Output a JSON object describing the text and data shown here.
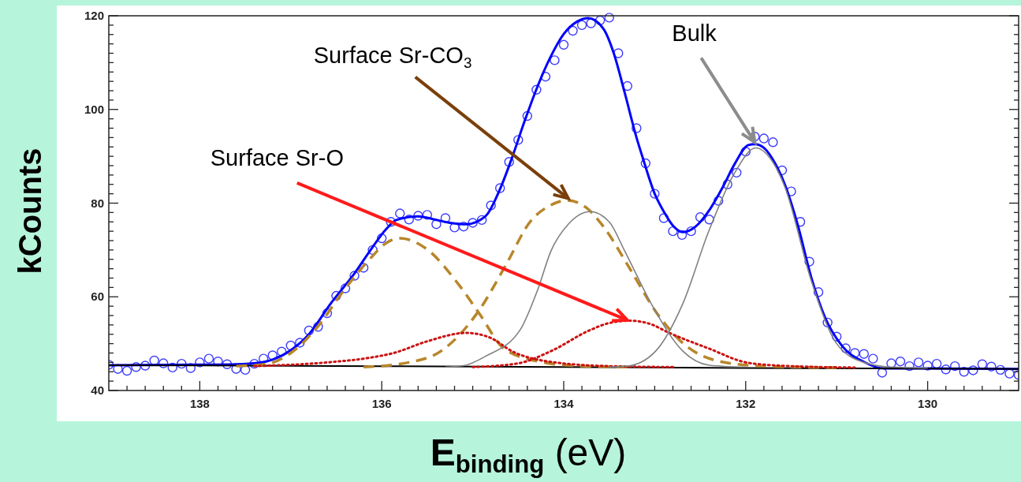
{
  "chart_data": {
    "type": "line",
    "xlabel": "E$_{binding}$ (eV)",
    "ylabel": "kCounts",
    "xlim": [
      139,
      129
    ],
    "ylim": [
      40,
      120
    ],
    "xticks": [
      {
        "value": 138.8,
        "label": null
      },
      {
        "value": 138.6,
        "label": null
      },
      {
        "value": 138.4,
        "label": null
      },
      {
        "value": 138.2,
        "label": null
      },
      138,
      {
        "value": 137.8,
        "label": null
      },
      {
        "value": 137.6,
        "label": null
      },
      {
        "value": 137.4,
        "label": null
      },
      {
        "value": 137.2,
        "label": null
      },
      {
        "value": 137,
        "label": null
      },
      {
        "value": 136.8,
        "label": null
      },
      {
        "value": 136.6,
        "label": null
      },
      {
        "value": 136.4,
        "label": null
      },
      {
        "value": 136.2,
        "label": null
      },
      136,
      {
        "value": 135.8,
        "label": null
      },
      {
        "value": 135.6,
        "label": null
      },
      {
        "value": 135.4,
        "label": null
      },
      {
        "value": 135.2,
        "label": null
      },
      {
        "value": 135,
        "label": null
      },
      {
        "value": 134.8,
        "label": null
      },
      {
        "value": 134.6,
        "label": null
      },
      {
        "value": 134.4,
        "label": null
      },
      {
        "value": 134.2,
        "label": null
      },
      134,
      {
        "value": 133.8,
        "label": null
      },
      {
        "value": 133.6,
        "label": null
      },
      {
        "value": 133.4,
        "label": null
      },
      {
        "value": 133.2,
        "label": null
      },
      {
        "value": 133,
        "label": null
      },
      {
        "value": 132.8,
        "label": null
      },
      {
        "value": 132.6,
        "label": null
      },
      {
        "value": 132.4,
        "label": null
      },
      {
        "value": 132.2,
        "label": null
      },
      132,
      {
        "value": 131.8,
        "label": null
      },
      {
        "value": 131.6,
        "label": null
      },
      {
        "value": 131.4,
        "label": null
      },
      {
        "value": 131.2,
        "label": null
      },
      {
        "value": 131,
        "label": null
      },
      {
        "value": 130.8,
        "label": null
      },
      {
        "value": 130.6,
        "label": null
      },
      {
        "value": 130.4,
        "label": null
      },
      {
        "value": 130.2,
        "label": null
      },
      130,
      {
        "value": 129.8,
        "label": null
      },
      {
        "value": 129.6,
        "label": null
      },
      {
        "value": 129.4,
        "label": null
      },
      {
        "value": 129.2,
        "label": null
      }
    ],
    "yticks": [
      40,
      {
        "value": 42,
        "label": null
      },
      {
        "value": 44,
        "label": null
      },
      {
        "value": 46,
        "label": null
      },
      {
        "value": 48,
        "label": null
      },
      {
        "value": 50,
        "label": null
      },
      {
        "value": 52,
        "label": null
      },
      {
        "value": 54,
        "label": null
      },
      {
        "value": 56,
        "label": null
      },
      {
        "value": 58,
        "label": null
      },
      60,
      {
        "value": 62,
        "label": null
      },
      {
        "value": 64,
        "label": null
      },
      {
        "value": 66,
        "label": null
      },
      {
        "value": 68,
        "label": null
      },
      {
        "value": 70,
        "label": null
      },
      {
        "value": 72,
        "label": null
      },
      {
        "value": 74,
        "label": null
      },
      {
        "value": 76,
        "label": null
      },
      {
        "value": 78,
        "label": null
      },
      80,
      {
        "value": 82,
        "label": null
      },
      {
        "value": 84,
        "label": null
      },
      {
        "value": 86,
        "label": null
      },
      {
        "value": 88,
        "label": null
      },
      {
        "value": 90,
        "label": null
      },
      {
        "value": 92,
        "label": null
      },
      {
        "value": 94,
        "label": null
      },
      {
        "value": 96,
        "label": null
      },
      {
        "value": 98,
        "label": null
      },
      100,
      {
        "value": 102,
        "label": null
      },
      {
        "value": 104,
        "label": null
      },
      {
        "value": 106,
        "label": null
      },
      {
        "value": 108,
        "label": null
      },
      {
        "value": 110,
        "label": null
      },
      {
        "value": 112,
        "label": null
      },
      {
        "value": 114,
        "label": null
      },
      {
        "value": 116,
        "label": null
      },
      {
        "value": 118,
        "label": null
      },
      120
    ],
    "series": [
      {
        "type": "scatter",
        "marker": "circle",
        "color": "#3c3cff",
        "x": [
          139.0,
          138.9,
          138.8,
          138.7,
          138.6,
          138.5,
          138.4,
          138.3,
          138.2,
          138.1,
          138.0,
          137.9,
          137.8,
          137.7,
          137.6,
          137.5,
          137.4,
          137.3,
          137.2,
          137.1,
          137.0,
          136.9,
          136.8,
          136.7,
          136.6,
          136.5,
          136.4,
          136.3,
          136.2,
          136.1,
          136.0,
          135.9,
          135.8,
          135.7,
          135.6,
          135.5,
          135.4,
          135.3,
          135.2,
          135.1,
          135.0,
          134.9,
          134.8,
          134.7,
          134.6,
          134.5,
          134.4,
          134.3,
          134.2,
          134.1,
          134.0,
          133.9,
          133.8,
          133.7,
          133.6,
          133.5,
          133.4,
          133.3,
          133.2,
          133.1,
          133.0,
          132.9,
          132.8,
          132.7,
          132.6,
          132.5,
          132.4,
          132.3,
          132.2,
          132.1,
          132.0,
          131.9,
          131.8,
          131.7,
          131.6,
          131.5,
          131.4,
          131.3,
          131.2,
          131.1,
          131.0,
          130.9,
          130.8,
          130.7,
          130.6,
          130.5,
          130.4,
          130.3,
          130.2,
          130.1,
          130.0,
          129.9,
          129.8,
          129.7,
          129.6,
          129.5,
          129.4,
          129.3,
          129.2,
          129.1,
          129.0
        ],
        "values": [
          45.5,
          44.6,
          44.2,
          45.0,
          45.3,
          46.4,
          45.8,
          44.9,
          45.7,
          44.8,
          46.0,
          46.8,
          46.2,
          45.6,
          44.6,
          44.4,
          45.7,
          46.8,
          47.5,
          48.3,
          49.6,
          50.2,
          52.8,
          53.6,
          56.5,
          60.2,
          61.8,
          64.5,
          66.2,
          70.0,
          72.5,
          76.0,
          77.8,
          76.5,
          77.3,
          77.5,
          75.5,
          76.8,
          74.8,
          75.0,
          75.8,
          76.4,
          79.5,
          83.2,
          88.8,
          93.5,
          98.6,
          104.2,
          107.0,
          110.5,
          113.8,
          116.8,
          118.0,
          118.4,
          119.0,
          119.6,
          112.0,
          105.0,
          96.0,
          88.5,
          82.0,
          76.8,
          74.0,
          73.2,
          74.0,
          77.0,
          76.5,
          80.5,
          84.0,
          86.5,
          91.0,
          94.2,
          93.8,
          93.0,
          87.0,
          82.5,
          76.0,
          67.5,
          61.0,
          54.5,
          51.5,
          49.0,
          48.0,
          47.8,
          46.8,
          43.8,
          45.8,
          46.2,
          45.2,
          46.0,
          45.3,
          45.7,
          44.5,
          45.2,
          44.0,
          44.3,
          45.6,
          45.1,
          44.4,
          43.6,
          43.3
        ]
      },
      {
        "line_style": "solid",
        "color": "#0000ff",
        "x": [
          139,
          138,
          137.6,
          137.4,
          137.2,
          137.0,
          136.8,
          136.56,
          136.3,
          136.13,
          135.95,
          135.84,
          135.6,
          135.44,
          135.25,
          135.07,
          134.86,
          134.7,
          134.57,
          134.43,
          134.29,
          134.15,
          134.0,
          133.85,
          133.73,
          133.56,
          133.45,
          133.33,
          133.2,
          133.13,
          133.0,
          132.9,
          132.8,
          132.69,
          132.55,
          132.41,
          132.25,
          132.12,
          131.97,
          131.9,
          131.8,
          131.71,
          131.57,
          131.43,
          131.28,
          131.13,
          130.94,
          130.7,
          130.48,
          130.0,
          129.0
        ],
        "values": [
          45.4,
          45.5,
          45.6,
          45.8,
          46.6,
          48.6,
          52.0,
          58.6,
          65.0,
          69.8,
          74.5,
          76.4,
          77.2,
          76.6,
          75.8,
          75.5,
          77.2,
          83.0,
          89.6,
          97.5,
          104.8,
          111.0,
          116.1,
          118.8,
          119.5,
          117.1,
          112.0,
          103.6,
          94.0,
          89.6,
          82.0,
          78.2,
          75.2,
          73.8,
          75.0,
          78.2,
          83.5,
          88.4,
          92.4,
          92.6,
          91.8,
          89.6,
          84.0,
          75.5,
          64.2,
          55.7,
          49.5,
          46.1,
          44.7,
          44.7,
          44.6
        ]
      },
      {
        "line_style": "solid",
        "color": "#000000",
        "x": [
          139,
          136,
          134,
          132,
          129
        ],
        "values": [
          45.4,
          45.2,
          45.0,
          44.8,
          44.6
        ]
      },
      {
        "line_style": "dashed",
        "color": "#b8862b",
        "x": [
          137.6,
          137.28,
          137.0,
          136.71,
          136.42,
          136.13,
          135.95,
          135.8,
          135.52,
          135.15,
          134.92,
          134.66,
          134.25,
          133.8,
          133.3
        ],
        "values": [
          45.2,
          45.6,
          48.0,
          53.5,
          61.3,
          68.1,
          71.5,
          72.5,
          70.4,
          62.5,
          56.2,
          49.0,
          46.1,
          45.2,
          45.0
        ]
      },
      {
        "line_style": "dashed",
        "color": "#b8862b",
        "x": [
          136.2,
          135.7,
          135.35,
          134.92,
          134.63,
          134.37,
          134.15,
          133.96,
          133.75,
          133.56,
          133.27,
          132.99,
          132.69,
          132.26,
          131.8,
          131.0
        ],
        "values": [
          45.0,
          46.0,
          48.4,
          57.4,
          67.0,
          76.0,
          79.5,
          80.6,
          79.0,
          74.9,
          65.9,
          56.9,
          50.1,
          46.1,
          45.2,
          44.9
        ]
      },
      {
        "line_style": "dotted",
        "color": "#cc1111",
        "x": [
          137.4,
          136.6,
          136.13,
          135.87,
          135.5,
          135.07,
          134.8,
          134.57,
          134.14,
          133.5,
          132.8
        ],
        "values": [
          45.2,
          46.0,
          47.0,
          48.0,
          50.5,
          52.3,
          51.2,
          48.4,
          46.1,
          45.2,
          45.0
        ]
      },
      {
        "line_style": "dotted",
        "color": "#cc1111",
        "x": [
          135.0,
          134.5,
          134.14,
          133.71,
          133.5,
          133.27,
          133.05,
          132.84,
          132.41,
          131.97,
          131.5,
          130.8
        ],
        "values": [
          45.0,
          45.8,
          48.4,
          52.9,
          54.4,
          54.9,
          54.2,
          52.3,
          49.0,
          45.9,
          45.2,
          44.9
        ]
      },
      {
        "line_style": "solid",
        "color": "#808080",
        "x": [
          135.3,
          135.1,
          134.86,
          134.48,
          134.29,
          134.14,
          133.95,
          133.71,
          133.5,
          133.33,
          133.04,
          132.69,
          132.4,
          132.0
        ],
        "values": [
          45.0,
          45.3,
          47.3,
          52.9,
          61.3,
          69.8,
          75.5,
          78.2,
          76.0,
          69.8,
          58.6,
          48.4,
          45.4,
          45.0
        ]
      },
      {
        "line_style": "solid",
        "color": "#808080",
        "x": [
          133.5,
          133.3,
          132.99,
          132.69,
          132.41,
          132.12,
          131.89,
          131.71,
          131.57,
          131.28,
          131.0,
          130.7,
          130.4,
          130.0
        ],
        "values": [
          45.0,
          45.2,
          48.4,
          58.6,
          73.8,
          86.5,
          91.8,
          89.0,
          83.5,
          63.5,
          50.0,
          46.0,
          45.0,
          44.8
        ]
      }
    ],
    "annotations": [
      {
        "text": "Surface Sr-CO$_{3}$",
        "x": 133.95,
        "y": 81
      },
      {
        "text": "Surface Sr-O",
        "x": 133.3,
        "y": 55
      },
      {
        "text": "Bulk",
        "x": 131.9,
        "y": 93
      }
    ]
  }
}
